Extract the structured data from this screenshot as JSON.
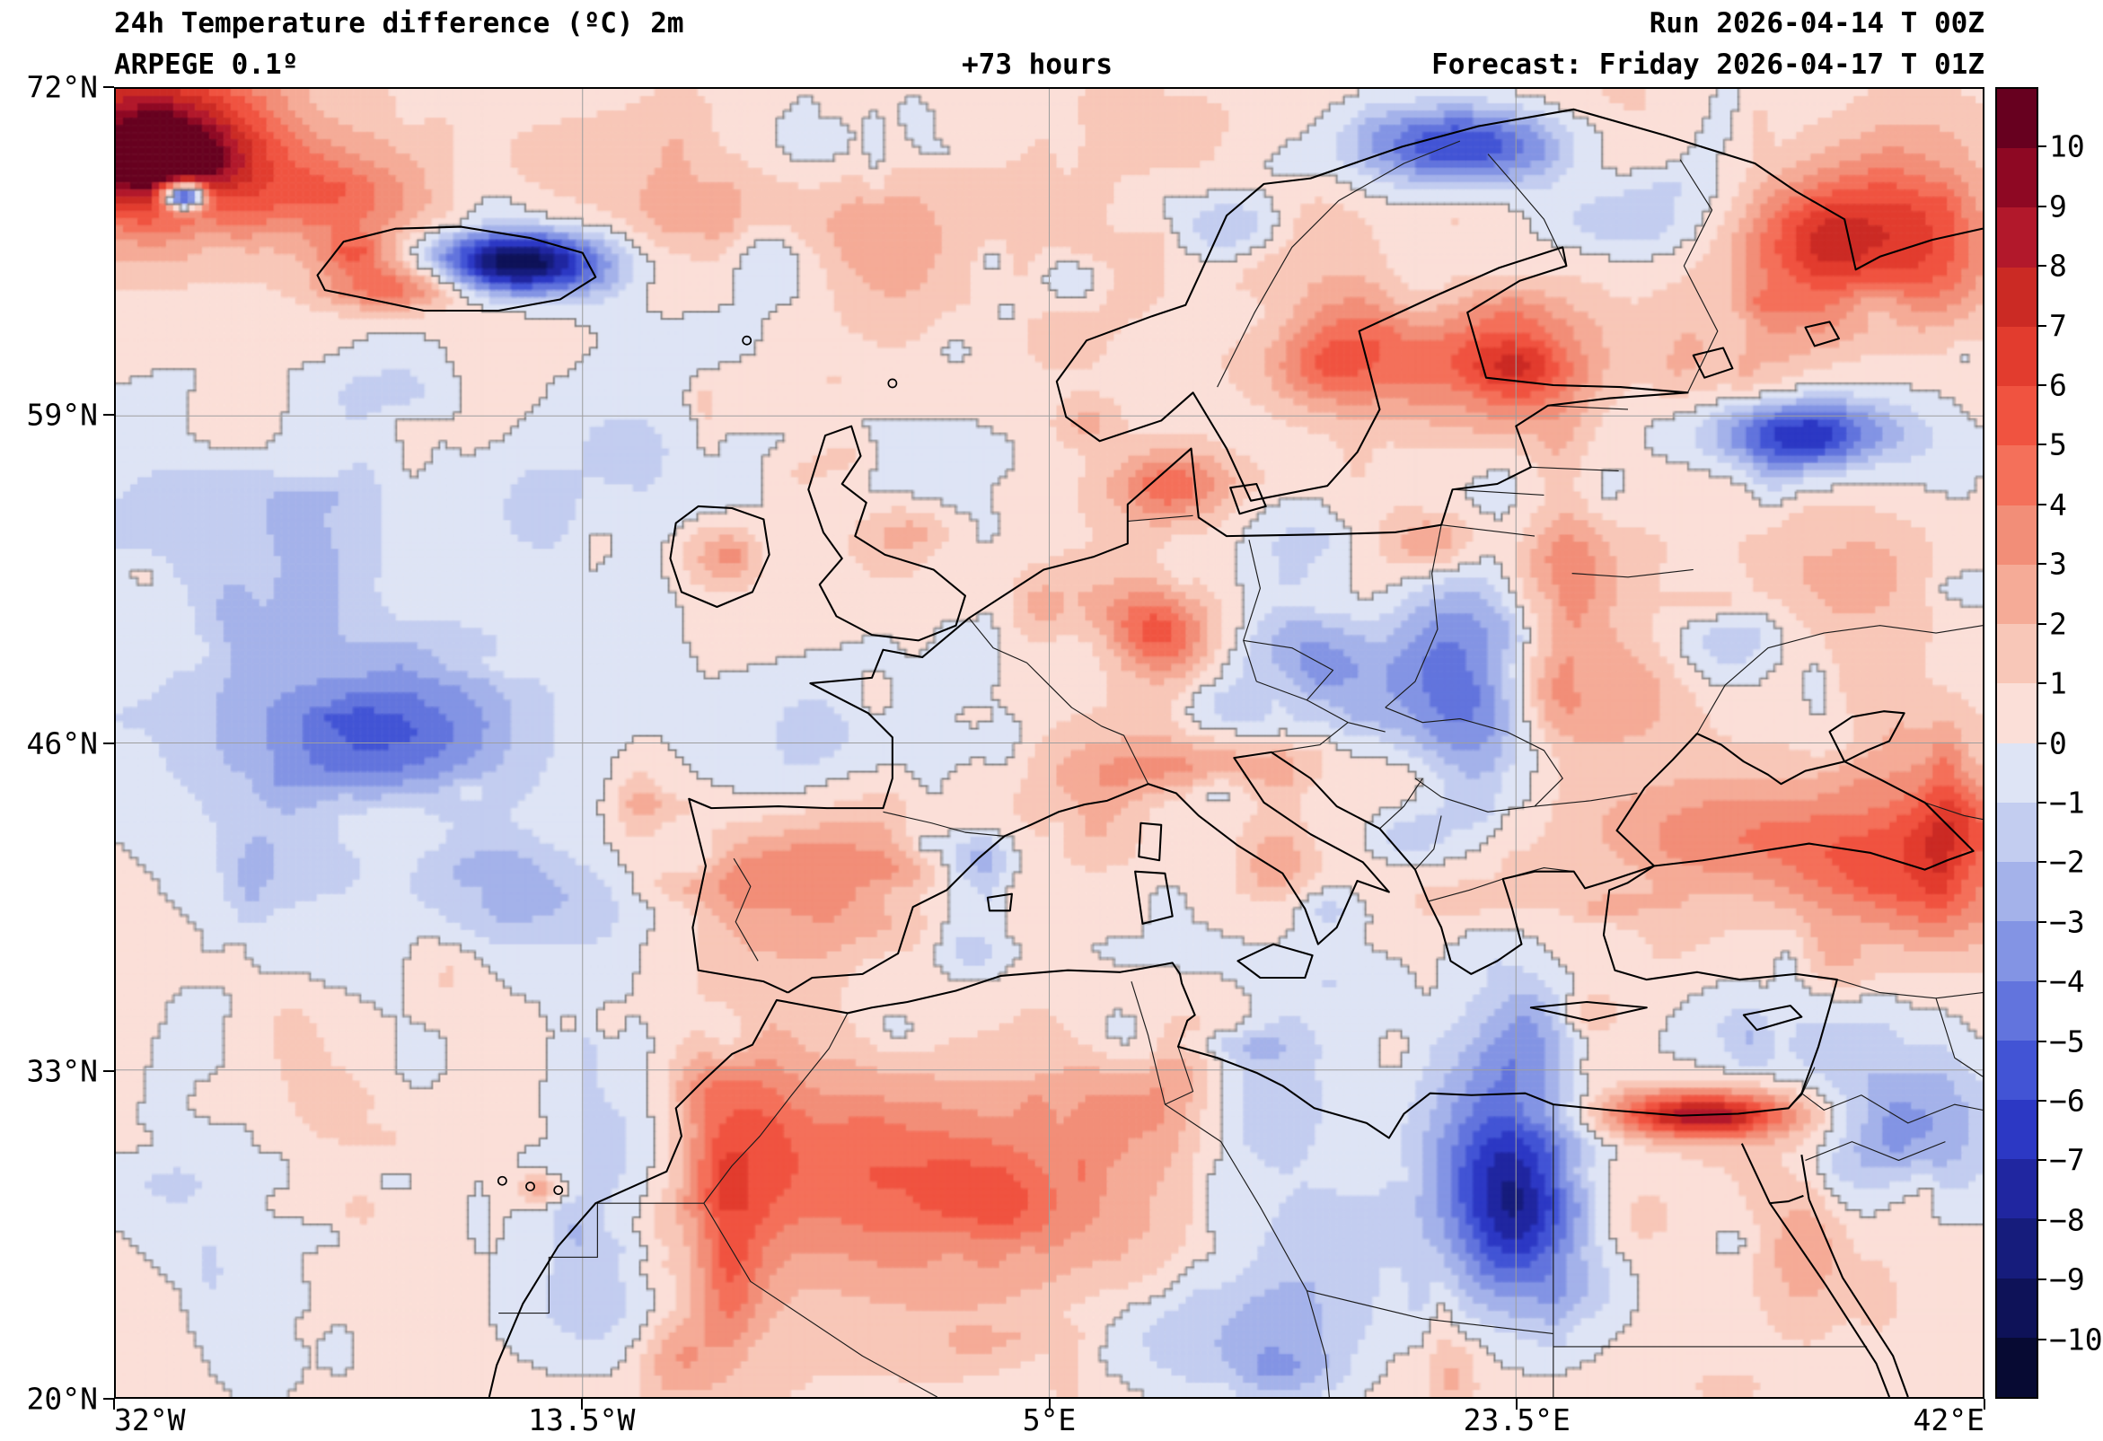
{
  "header": {
    "title": "24h Temperature difference (ºC) 2m",
    "model": "ARPEGE 0.1º",
    "lead_time": "+73 hours",
    "run": "Run 2026-04-14 T 00Z",
    "forecast": "Forecast: Friday 2026-04-17 T 01Z"
  },
  "axes": {
    "lat_ticks": [
      "72°N",
      "59°N",
      "46°N",
      "33°N",
      "20°N"
    ],
    "lon_ticks": [
      "32°W",
      "13.5°W",
      "5°E",
      "23.5°E",
      "42°E"
    ]
  },
  "colorbar": {
    "tick_labels": [
      "10",
      "9",
      "8",
      "7",
      "6",
      "5",
      "4",
      "3",
      "2",
      "1",
      "0",
      "−1",
      "−2",
      "−3",
      "−4",
      "−5",
      "−6",
      "−7",
      "−8",
      "−9",
      "−10"
    ],
    "colors": [
      "#67001f",
      "#8e0823",
      "#b2182b",
      "#cb2a24",
      "#e23c2e",
      "#f05340",
      "#f4705a",
      "#f28e78",
      "#f5ab97",
      "#f8c7b8",
      "#fbdfd8",
      "#dee4f5",
      "#c3cdf0",
      "#a4b2ea",
      "#8394e4",
      "#6274dd",
      "#4254d5",
      "#2c38c4",
      "#2026a0",
      "#161c7c",
      "#0e1258",
      "#070a33"
    ]
  },
  "map": {
    "units": "°C",
    "variable": "24h 2m temperature difference",
    "graticule_color": "#9e9e9e",
    "zero_contour_color": "rgba(115,115,115,0.85)",
    "base": 0.5,
    "grid": {
      "nx": 260,
      "ny": 182
    },
    "blobs": [
      [
        10,
        25,
        75,
        45,
        8
      ],
      [
        30,
        40,
        35,
        22,
        5
      ],
      [
        36,
        57,
        12,
        8,
        -14
      ],
      [
        115,
        62,
        50,
        28,
        3.5
      ],
      [
        215,
        93,
        46,
        17,
        -11
      ],
      [
        150,
        106,
        38,
        13,
        4.5
      ],
      [
        128,
        88,
        18,
        10,
        3
      ],
      [
        70,
        230,
        90,
        75,
        -2.2
      ],
      [
        120,
        345,
        95,
        55,
        -3.2
      ],
      [
        150,
        350,
        45,
        26,
        -1.8
      ],
      [
        205,
        432,
        42,
        24,
        -2.8
      ],
      [
        290,
        195,
        65,
        55,
        -1.3
      ],
      [
        450,
        55,
        330,
        70,
        1.0
      ],
      [
        322,
        251,
        24,
        20,
        2.6
      ],
      [
        420,
        242,
        26,
        22,
        2.4
      ],
      [
        392,
        197,
        16,
        12,
        1.6
      ],
      [
        390,
        345,
        60,
        38,
        -1.2
      ],
      [
        490,
        222,
        42,
        30,
        -1.0
      ],
      [
        380,
        428,
        76,
        48,
        3.0
      ],
      [
        345,
        425,
        30,
        20,
        1.5
      ],
      [
        430,
        415,
        26,
        16,
        1.2
      ],
      [
        460,
        412,
        24,
        14,
        -2.8
      ],
      [
        450,
        300,
        45,
        28,
        -1.0
      ],
      [
        555,
        283,
        38,
        18,
        2.2
      ],
      [
        565,
        213,
        30,
        20,
        4.2
      ],
      [
        520,
        180,
        18,
        14,
        2.0
      ],
      [
        660,
        140,
        48,
        32,
        4.5
      ],
      [
        745,
        150,
        52,
        36,
        4.8
      ],
      [
        750,
        148,
        22,
        14,
        2.0
      ],
      [
        600,
        75,
        32,
        20,
        -3.5
      ],
      [
        720,
        30,
        62,
        22,
        -7.0
      ],
      [
        905,
        82,
        55,
        38,
        5.5
      ],
      [
        965,
        70,
        42,
        50,
        4.0
      ],
      [
        800,
        70,
        40,
        20,
        -3.0
      ],
      [
        760,
        222,
        46,
        34,
        -3.0
      ],
      [
        775,
        255,
        26,
        55,
        3.3
      ],
      [
        705,
        245,
        20,
        14,
        2.3
      ],
      [
        900,
        185,
        46,
        18,
        -6.5
      ],
      [
        930,
        260,
        50,
        42,
        2.0
      ],
      [
        860,
        300,
        30,
        24,
        -2.0
      ],
      [
        720,
        310,
        40,
        58,
        -5.0
      ],
      [
        735,
        378,
        34,
        36,
        -2.5
      ],
      [
        645,
        310,
        42,
        28,
        -3.2
      ],
      [
        565,
        302,
        24,
        18,
        1.8
      ],
      [
        592,
        332,
        20,
        14,
        -1.5
      ],
      [
        580,
        365,
        55,
        15,
        2.4
      ],
      [
        590,
        376,
        16,
        10,
        -1.8
      ],
      [
        622,
        412,
        18,
        20,
        2.0
      ],
      [
        650,
        440,
        20,
        15,
        -1.6
      ],
      [
        725,
        372,
        46,
        24,
        2.4
      ],
      [
        692,
        402,
        20,
        15,
        -1.8
      ],
      [
        738,
        460,
        26,
        20,
        -1.5
      ],
      [
        800,
        325,
        46,
        30,
        2.4
      ],
      [
        870,
        400,
        80,
        34,
        3.2
      ],
      [
        940,
        412,
        48,
        28,
        2.6
      ],
      [
        985,
        395,
        30,
        20,
        2.6
      ],
      [
        975,
        436,
        46,
        30,
        3.2
      ],
      [
        845,
        550,
        62,
        14,
        6.0
      ],
      [
        850,
        552,
        30,
        8,
        2.5
      ],
      [
        745,
        585,
        46,
        75,
        -6.8
      ],
      [
        750,
        605,
        26,
        40,
        -2.5
      ],
      [
        610,
        548,
        46,
        38,
        -2.8
      ],
      [
        645,
        620,
        50,
        40,
        -2.4
      ],
      [
        540,
        505,
        30,
        22,
        -2.0
      ],
      [
        450,
        590,
        85,
        55,
        3.2
      ],
      [
        470,
        600,
        36,
        26,
        1.4
      ],
      [
        335,
        575,
        34,
        75,
        4.2
      ],
      [
        328,
        640,
        17,
        45,
        2.8
      ],
      [
        300,
        680,
        20,
        25,
        2.6
      ],
      [
        228,
        590,
        13,
        8,
        3.0
      ],
      [
        600,
        668,
        75,
        32,
        -3.2
      ],
      [
        625,
        690,
        32,
        15,
        -2.0
      ],
      [
        955,
        560,
        52,
        40,
        -4.2
      ],
      [
        905,
        620,
        24,
        42,
        2.4
      ],
      [
        640,
        480,
        85,
        30,
        -1.0
      ],
      [
        540,
        462,
        50,
        18,
        -0.8
      ],
      [
        450,
        625,
        240,
        85,
        0.8
      ],
      [
        180,
        420,
        170,
        140,
        -0.8
      ],
      [
        860,
        140,
        40,
        30,
        2.5
      ]
    ],
    "noise": [
      {
        "seed": 7,
        "count": 420,
        "amp": 1.3,
        "rmin": 6,
        "rmax": 26
      },
      {
        "seed": 99,
        "count": 90,
        "amp": 1.8,
        "rmin": 20,
        "rmax": 55
      }
    ]
  }
}
